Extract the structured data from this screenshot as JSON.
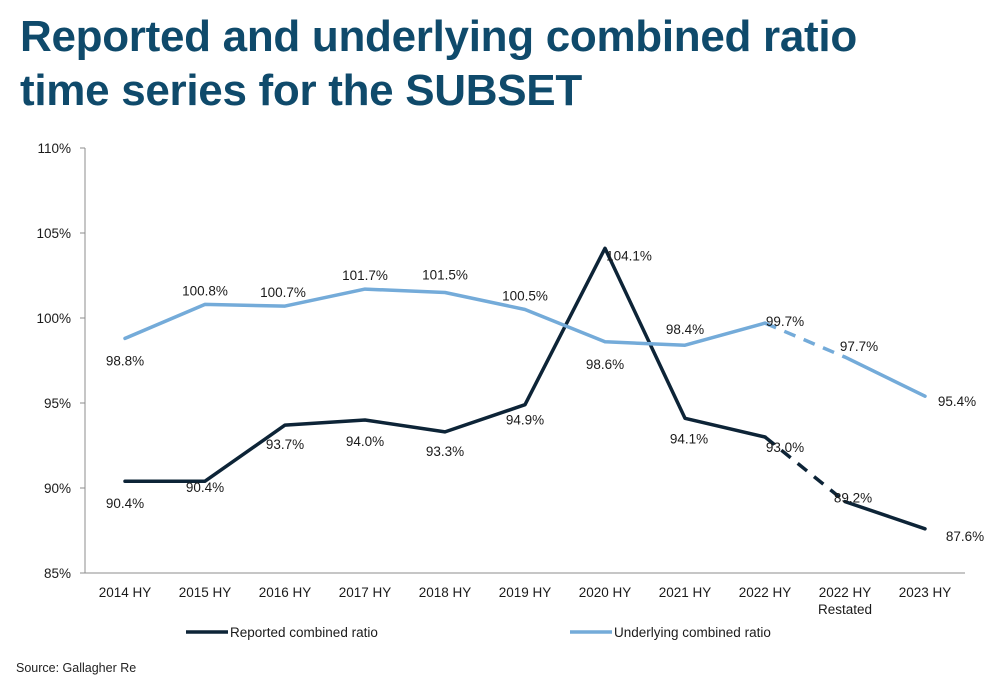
{
  "title_line1": "Reported and underlying combined ratio",
  "title_line2": "time series for the SUBSET",
  "source": "Source: Gallagher Re",
  "colors": {
    "title": "#0f4a6b",
    "reported": "#0d2437",
    "underlying": "#74abd9"
  },
  "chart_data": {
    "type": "line",
    "categories": [
      "2014 HY",
      "2015 HY",
      "2016 HY",
      "2017 HY",
      "2018 HY",
      "2019 HY",
      "2020 HY",
      "2021 HY",
      "2022 HY",
      "2022 HY\nRestated",
      "2023 HY"
    ],
    "ylim": [
      85,
      110
    ],
    "yticks": [
      85,
      90,
      95,
      100,
      105,
      110
    ],
    "ytick_labels": [
      "85%",
      "90%",
      "95%",
      "100%",
      "105%",
      "110%"
    ],
    "legend_position": "bottom",
    "grid": false,
    "series": [
      {
        "name": "Reported combined ratio",
        "color": "#0d2437",
        "values": [
          90.4,
          90.4,
          93.7,
          94.0,
          93.3,
          94.9,
          104.1,
          94.1,
          93.0,
          89.2,
          87.6
        ],
        "labels": [
          "90.4%",
          "90.4%",
          "93.7%",
          "94.0%",
          "93.3%",
          "94.9%",
          "104.1%",
          "94.1%",
          "93.0%",
          "89.2%",
          "87.6%"
        ],
        "dashed_segment_after": 8
      },
      {
        "name": "Underlying combined ratio",
        "color": "#74abd9",
        "values": [
          98.8,
          100.8,
          100.7,
          101.7,
          101.5,
          100.5,
          98.6,
          98.4,
          99.7,
          97.7,
          95.4
        ],
        "labels": [
          "98.8%",
          "100.8%",
          "100.7%",
          "101.7%",
          "101.5%",
          "100.5%",
          "98.6%",
          "98.4%",
          "99.7%",
          "97.7%",
          "95.4%"
        ],
        "dashed_segment_after": 8
      }
    ]
  }
}
